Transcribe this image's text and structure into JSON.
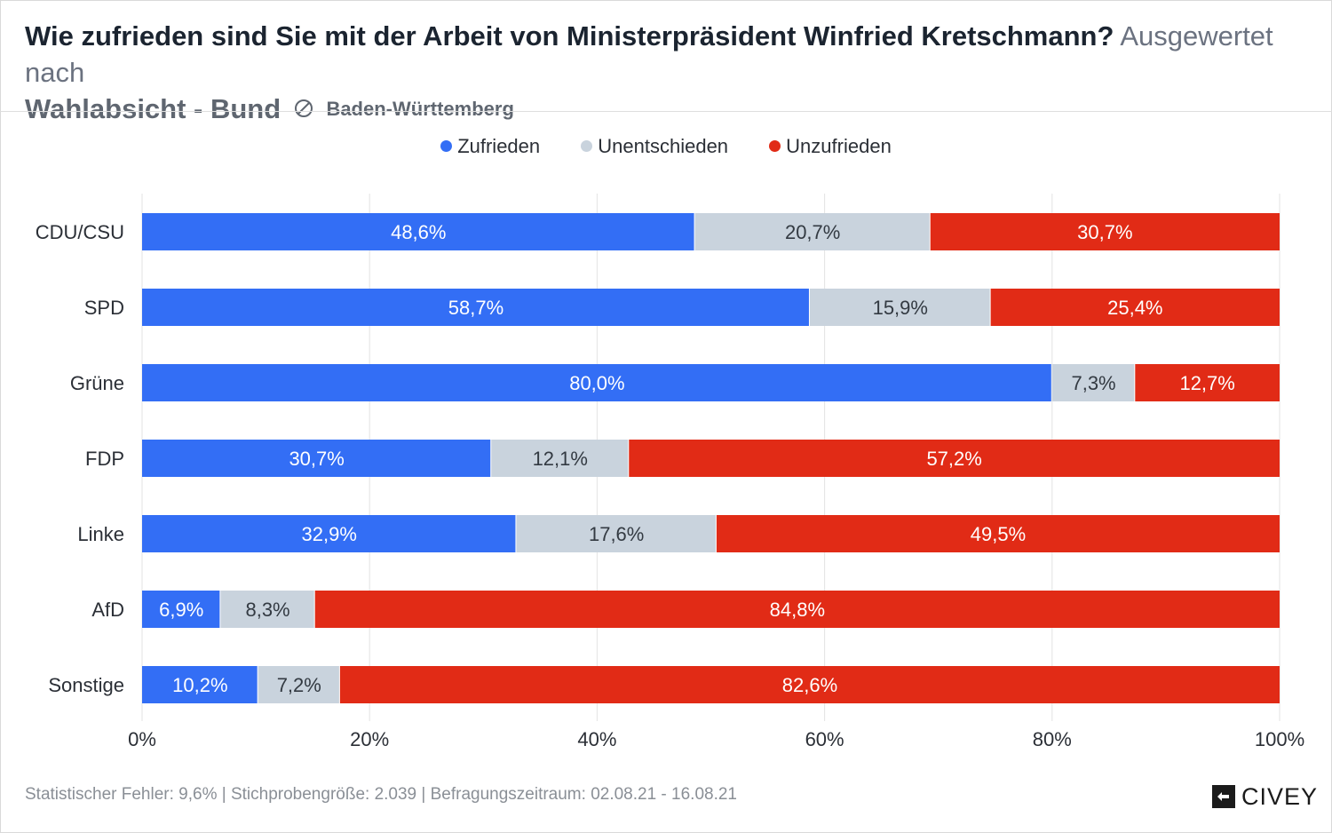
{
  "header": {
    "title": "Wie zufrieden sind Sie mit der Arbeit von Ministerpräsident Winfried Kretschmann?",
    "subtitle_part1": "Ausgewertet nach",
    "subtitle_part2": "Wahlabsicht - Bund",
    "region": "Baden-Württemberg"
  },
  "legend": [
    {
      "label": "Zufrieden",
      "color": "#336ef5"
    },
    {
      "label": "Unentschieden",
      "color": "#c9d3dd"
    },
    {
      "label": "Unzufrieden",
      "color": "#e12b16"
    }
  ],
  "footer": {
    "text": "Statistischer Fehler: 9,6% | Stichprobengröße: 2.039 | Befragungszeitraum: 02.08.21 - 16.08.21",
    "logo": "CIVEY"
  },
  "chart_data": {
    "type": "bar",
    "orientation": "horizontal",
    "stacked": true,
    "categories": [
      "CDU/CSU",
      "SPD",
      "Grüne",
      "FDP",
      "Linke",
      "AfD",
      "Sonstige"
    ],
    "series": [
      {
        "name": "Zufrieden",
        "color": "#336ef5",
        "label_color": "#ffffff",
        "values": [
          48.6,
          58.7,
          80.0,
          30.7,
          32.9,
          6.9,
          10.2
        ],
        "labels": [
          "48,6%",
          "58,7%",
          "80,0%",
          "30,7%",
          "32,9%",
          "6,9%",
          "10,2%"
        ]
      },
      {
        "name": "Unentschieden",
        "color": "#c9d3dd",
        "label_color": "#333a42",
        "values": [
          20.7,
          15.9,
          7.3,
          12.1,
          17.6,
          8.3,
          7.2
        ],
        "labels": [
          "20,7%",
          "15,9%",
          "7,3%",
          "12,1%",
          "17,6%",
          "8,3%",
          "7,2%"
        ]
      },
      {
        "name": "Unzufrieden",
        "color": "#e12b16",
        "label_color": "#ffffff",
        "values": [
          30.7,
          25.4,
          12.7,
          57.2,
          49.5,
          84.8,
          82.6
        ],
        "labels": [
          "30,7%",
          "25,4%",
          "12,7%",
          "57,2%",
          "49,5%",
          "84,8%",
          "82,6%"
        ]
      }
    ],
    "xlim": [
      0,
      100
    ],
    "xticks": [
      0,
      20,
      40,
      60,
      80,
      100
    ],
    "xtick_labels": [
      "0%",
      "20%",
      "40%",
      "60%",
      "80%",
      "100%"
    ],
    "grid": true,
    "legend_position": "top-center"
  }
}
